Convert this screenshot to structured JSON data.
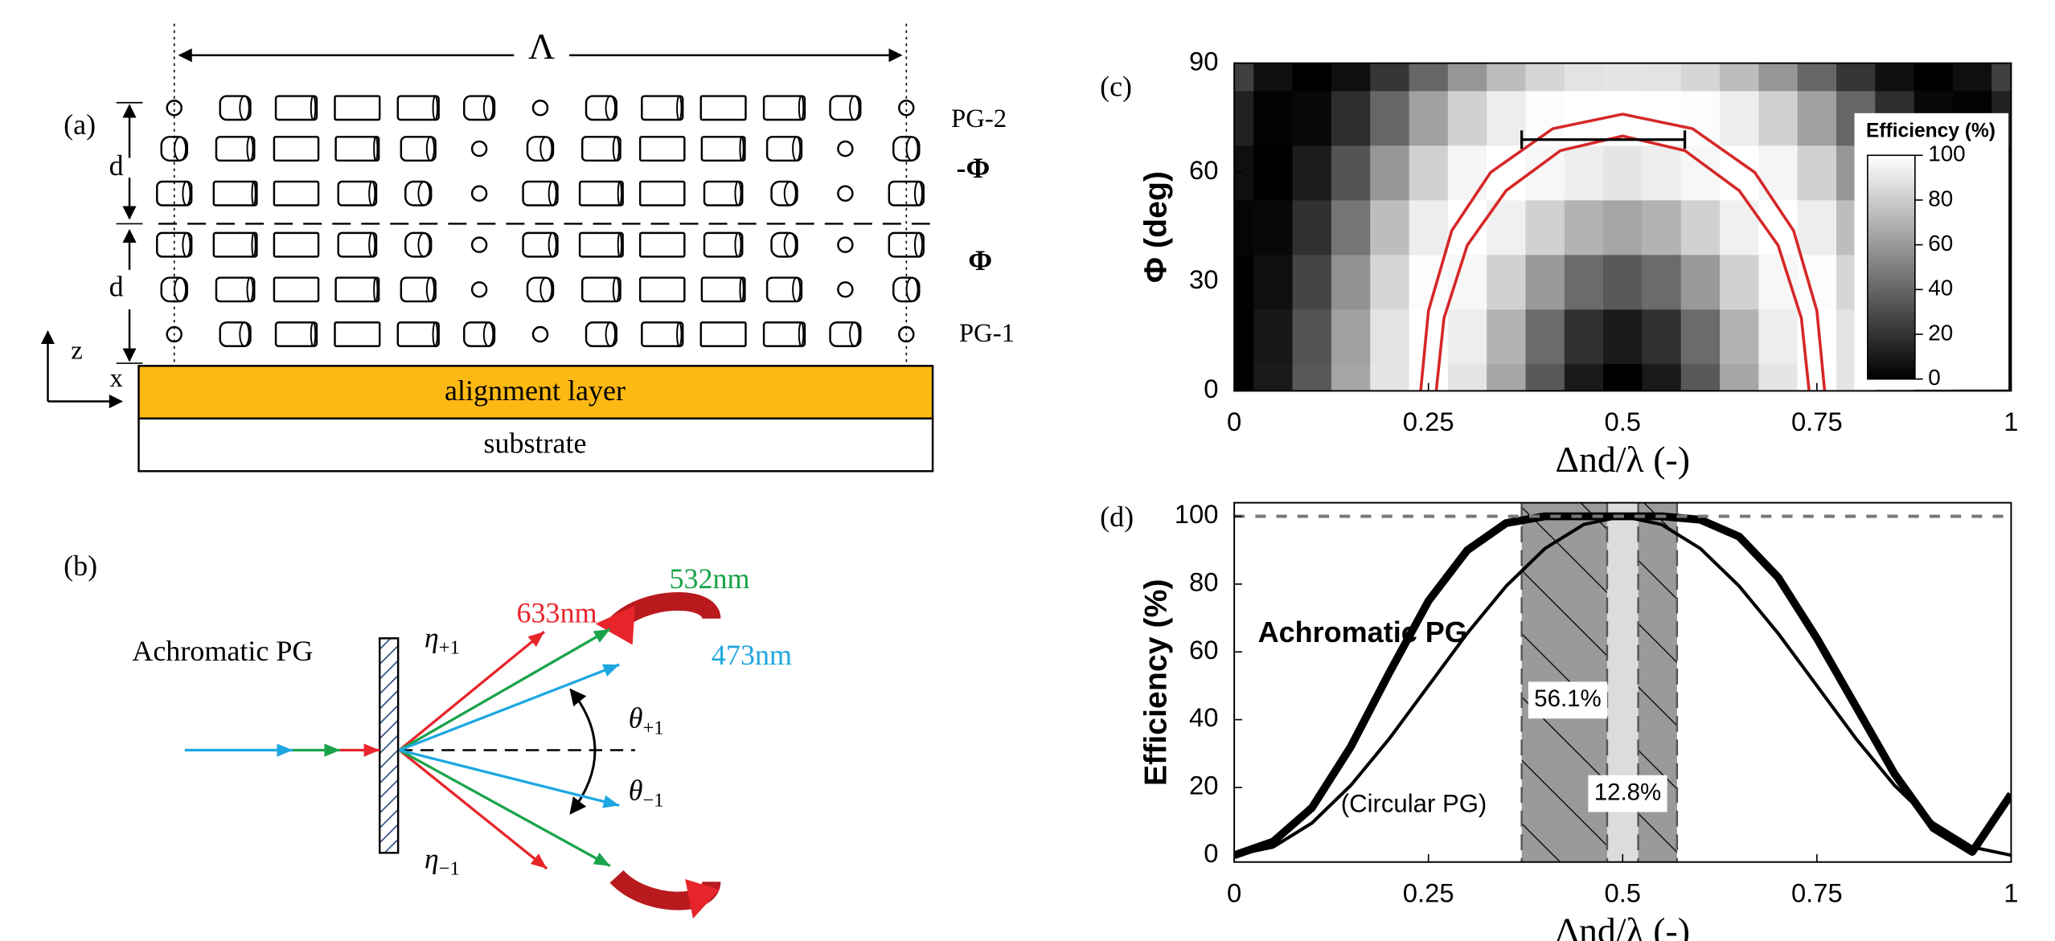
{
  "panel_a": {
    "label": "(a)",
    "period": "Λ",
    "thickness": "d",
    "z_axis": "z",
    "x_axis": "x",
    "layers": [
      "PG-2",
      "-Φ",
      "Φ",
      "PG-1"
    ],
    "alignment_layer": "alignment layer",
    "substrate": "substrate"
  },
  "panel_b": {
    "label": "(b)",
    "device": "Achromatic PG",
    "wavelengths": [
      {
        "label": "633nm",
        "color": "#e8242b"
      },
      {
        "label": "532nm",
        "color": "#1aa34a"
      },
      {
        "label": "473nm",
        "color": "#1ea7e1"
      }
    ],
    "eta_plus": {
      "symbol": "η",
      "subscript": "+1"
    },
    "eta_minus": {
      "symbol": "η",
      "subscript": "−1"
    },
    "theta_plus": {
      "symbol": "θ",
      "subscript": "+1"
    },
    "theta_minus": {
      "symbol": "θ",
      "subscript": "−1"
    }
  },
  "chart_data": [
    {
      "type": "contour",
      "label": "(c)",
      "x": [
        0,
        0.05,
        0.1,
        0.15,
        0.2,
        0.25,
        0.3,
        0.35,
        0.4,
        0.45,
        0.5,
        0.55,
        0.6,
        0.65,
        0.7,
        0.75,
        0.8,
        0.85,
        0.9,
        0.95,
        1
      ],
      "y": [
        0,
        15,
        30,
        45,
        60,
        75,
        90
      ],
      "z": [
        [
          0,
          10,
          35,
          65,
          90,
          100,
          90,
          65,
          35,
          10,
          0,
          10,
          35,
          65,
          90,
          100,
          90,
          65,
          35,
          10,
          0
        ],
        [
          0,
          9,
          33,
          63,
          89,
          100,
          93,
          70,
          42,
          19,
          10,
          19,
          42,
          70,
          93,
          100,
          89,
          63,
          33,
          9,
          0
        ],
        [
          0,
          6,
          27,
          57,
          84,
          99,
          97,
          82,
          60,
          42,
          35,
          42,
          60,
          82,
          97,
          99,
          84,
          57,
          27,
          6,
          0
        ],
        [
          2,
          3,
          19,
          46,
          74,
          93,
          100,
          94,
          82,
          70,
          65,
          70,
          82,
          94,
          100,
          93,
          74,
          46,
          19,
          3,
          2
        ],
        [
          6,
          0,
          11,
          33,
          59,
          82,
          96,
          100,
          97,
          93,
          90,
          93,
          97,
          100,
          96,
          82,
          59,
          33,
          11,
          0,
          6
        ],
        [
          13,
          1,
          3,
          18,
          40,
          63,
          82,
          93,
          99,
          100,
          100,
          100,
          99,
          93,
          82,
          63,
          40,
          18,
          3,
          1,
          13
        ],
        [
          25,
          6,
          0,
          6,
          21,
          40,
          59,
          74,
          84,
          89,
          90,
          89,
          84,
          74,
          59,
          40,
          21,
          6,
          0,
          6,
          25
        ]
      ],
      "xlim": [
        0,
        1
      ],
      "ylim": [
        0,
        90
      ],
      "xticks": [
        0,
        0.25,
        0.5,
        0.75,
        1
      ],
      "yticks": [
        0,
        30,
        60,
        90
      ],
      "xlabel": "Δnd/λ (-)",
      "ylabel": "Φ (deg)",
      "colorbar": {
        "title": "Efficiency (%)",
        "ticks": [
          0,
          20,
          40,
          60,
          80,
          100
        ]
      },
      "contours": [
        {
          "color": "#d62728",
          "x": [
            0.26,
            0.27,
            0.3,
            0.35,
            0.42,
            0.5,
            0.58,
            0.65,
            0.7,
            0.73,
            0.74
          ],
          "y": [
            0,
            20,
            40,
            55,
            66,
            70,
            66,
            55,
            40,
            20,
            0
          ]
        },
        {
          "color": "#d62728",
          "x": [
            0.24,
            0.25,
            0.28,
            0.33,
            0.41,
            0.5,
            0.59,
            0.67,
            0.72,
            0.75,
            0.76
          ],
          "y": [
            0,
            22,
            44,
            60,
            72,
            76,
            72,
            60,
            44,
            22,
            0
          ]
        }
      ],
      "marker": {
        "x": [
          0.37,
          0.58
        ],
        "y": [
          69,
          69
        ]
      }
    },
    {
      "type": "line",
      "label": "(d)",
      "x": [
        0,
        0.05,
        0.1,
        0.15,
        0.2,
        0.25,
        0.3,
        0.35,
        0.4,
        0.45,
        0.5,
        0.55,
        0.6,
        0.65,
        0.7,
        0.75,
        0.8,
        0.85,
        0.9,
        0.95,
        1
      ],
      "series": [
        {
          "name": "Achromatic PG",
          "color": "#000000",
          "values": [
            0,
            4,
            14,
            32,
            54,
            75,
            90,
            98,
            100,
            100,
            100,
            100,
            99,
            94,
            82,
            64,
            44,
            24,
            8,
            1,
            18
          ]
        },
        {
          "name": "(Circular PG)",
          "color": "#000000",
          "values": [
            0,
            2.4,
            9.5,
            20.6,
            34.5,
            50,
            65.5,
            79.4,
            90.5,
            97.6,
            100,
            97.6,
            90.5,
            79.4,
            65.5,
            50,
            34.5,
            20.6,
            9.5,
            2.4,
            0
          ]
        }
      ],
      "xlim": [
        0,
        1
      ],
      "ylim": [
        -2,
        104
      ],
      "xticks": [
        0,
        0.25,
        0.5,
        0.75,
        1
      ],
      "yticks": [
        0,
        20,
        40,
        60,
        80,
        100
      ],
      "xlabel": "Δnd/λ (-)",
      "ylabel": "Efficiency (%)",
      "reference_line": 100,
      "shaded_regions": [
        {
          "x": [
            0.37,
            0.48
          ],
          "label": "56.1%"
        },
        {
          "x": [
            0.52,
            0.57
          ],
          "label": "12.8%"
        }
      ]
    }
  ]
}
